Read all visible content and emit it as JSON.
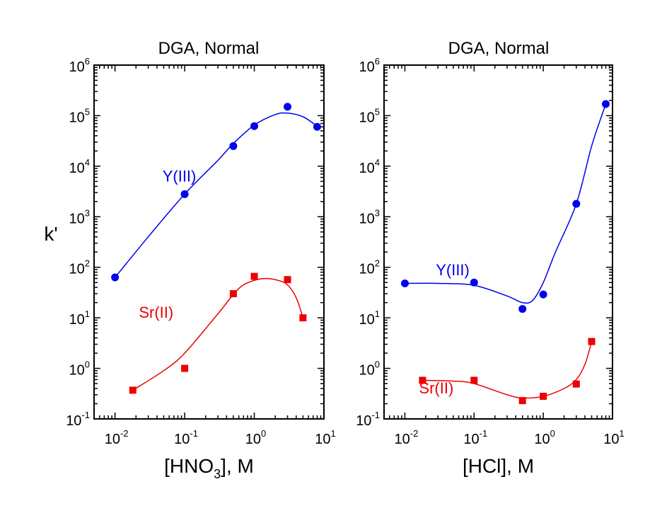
{
  "chart_data": [
    {
      "type": "scatter",
      "title": "DGA, Normal",
      "xlabel_base": "[HNO",
      "xlabel_sub": "3",
      "xlabel_tail": "], M",
      "ylabel": "k'",
      "xscale": "log",
      "yscale": "log",
      "xlim": [
        0.005,
        10
      ],
      "ylim": [
        0.1,
        1000000
      ],
      "x_tick_exponents": [
        -2,
        -1,
        0,
        1
      ],
      "y_tick_exponents": [
        -1,
        0,
        1,
        2,
        3,
        4,
        5,
        6
      ],
      "series": [
        {
          "name": "Y(III)",
          "color": "#0000ee",
          "marker": "circle",
          "points": [
            [
              0.01,
              63
            ],
            [
              0.1,
              2800
            ],
            [
              0.5,
              25000
            ],
            [
              1,
              62000
            ],
            [
              3,
              150000
            ],
            [
              8,
              60000
            ]
          ],
          "curve": [
            [
              0.01,
              63
            ],
            [
              0.03,
              400
            ],
            [
              0.1,
              2800
            ],
            [
              0.3,
              13000
            ],
            [
              0.5,
              28000
            ],
            [
              1,
              65000
            ],
            [
              2,
              105000
            ],
            [
              3,
              112000
            ],
            [
              5,
              95000
            ],
            [
              8,
              62000
            ]
          ],
          "label": "Y(III)",
          "label_anchor": [
            0.048,
            5000
          ]
        },
        {
          "name": "Sr(II)",
          "color": "#ee0000",
          "marker": "square",
          "points": [
            [
              0.018,
              0.37
            ],
            [
              0.1,
              1.0
            ],
            [
              0.5,
              30
            ],
            [
              1,
              66
            ],
            [
              3,
              57
            ],
            [
              5,
              10
            ]
          ],
          "curve": [
            [
              0.018,
              0.37
            ],
            [
              0.05,
              0.9
            ],
            [
              0.1,
              2
            ],
            [
              0.3,
              12
            ],
            [
              0.6,
              38
            ],
            [
              1,
              55
            ],
            [
              1.5,
              60
            ],
            [
              2.2,
              55
            ],
            [
              3,
              45
            ],
            [
              4,
              25
            ],
            [
              5,
              10
            ]
          ],
          "label": "Sr(II)",
          "label_anchor": [
            0.022,
            10
          ]
        }
      ]
    },
    {
      "type": "scatter",
      "title": "DGA, Normal",
      "xlabel_base": "[HCl], M",
      "xlabel_sub": "",
      "xlabel_tail": "",
      "ylabel": "",
      "xscale": "log",
      "yscale": "log",
      "xlim": [
        0.005,
        10
      ],
      "ylim": [
        0.1,
        1000000
      ],
      "x_tick_exponents": [
        -2,
        -1,
        0,
        1
      ],
      "y_tick_exponents": [
        -1,
        0,
        1,
        2,
        3,
        4,
        5,
        6
      ],
      "series": [
        {
          "name": "Y(III)",
          "color": "#0000ee",
          "marker": "circle",
          "points": [
            [
              0.01,
              48
            ],
            [
              0.1,
              50
            ],
            [
              0.5,
              15
            ],
            [
              1,
              29
            ],
            [
              3,
              1800
            ],
            [
              8,
              170000
            ]
          ],
          "curve": [
            [
              0.01,
              48
            ],
            [
              0.03,
              48
            ],
            [
              0.1,
              44
            ],
            [
              0.3,
              27
            ],
            [
              0.5,
              20
            ],
            [
              0.7,
              22
            ],
            [
              1,
              50
            ],
            [
              1.5,
              200
            ],
            [
              3,
              1800
            ],
            [
              5,
              25000
            ],
            [
              8,
              170000
            ]
          ],
          "label": "Y(III)",
          "label_anchor": [
            0.028,
            70
          ]
        },
        {
          "name": "Sr(II)",
          "color": "#ee0000",
          "marker": "square",
          "points": [
            [
              0.018,
              0.58
            ],
            [
              0.1,
              0.58
            ],
            [
              0.5,
              0.23
            ],
            [
              1,
              0.28
            ],
            [
              3,
              0.49
            ],
            [
              5,
              3.4
            ]
          ],
          "curve": [
            [
              0.018,
              0.58
            ],
            [
              0.05,
              0.56
            ],
            [
              0.1,
              0.5
            ],
            [
              0.3,
              0.3
            ],
            [
              0.5,
              0.26
            ],
            [
              1,
              0.28
            ],
            [
              2,
              0.4
            ],
            [
              3,
              0.6
            ],
            [
              4,
              1.2
            ],
            [
              5,
              3.4
            ]
          ],
          "label": "Sr(II)",
          "label_anchor": [
            0.016,
            0.32
          ]
        }
      ]
    }
  ]
}
